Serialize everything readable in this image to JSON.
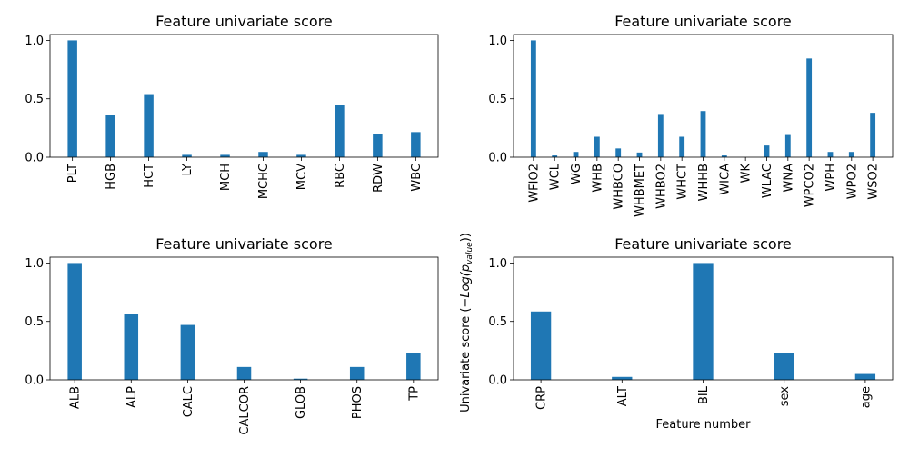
{
  "figure": {
    "shared_ylabel_prefix": "Univariate score (",
    "shared_ylabel_math": "−Log(p",
    "shared_ylabel_sub": "value",
    "shared_ylabel_suffix": "))"
  },
  "chart_data": [
    {
      "type": "bar",
      "title": "Feature univariate score",
      "xlabel": "",
      "ylabel": "",
      "categories": [
        "PLT",
        "HGB",
        "HCT",
        "LY",
        "MCH",
        "MCHC",
        "MCV",
        "RBC",
        "RDW",
        "WBC"
      ],
      "values": [
        1.0,
        0.36,
        0.54,
        0.02,
        0.02,
        0.045,
        0.02,
        0.45,
        0.2,
        0.215
      ],
      "ylim": [
        0,
        1.05
      ],
      "yticks": [
        0.0,
        0.5,
        1.0
      ],
      "ytick_labels": [
        "0.0",
        "0.5",
        "1.0"
      ],
      "bar_color": "#1f77b4",
      "grid": false
    },
    {
      "type": "bar",
      "title": "Feature univariate score",
      "xlabel": "",
      "ylabel": "",
      "categories": [
        "WFIO2",
        "WCL",
        "WG",
        "WHB",
        "WHBCO",
        "WHBMET",
        "WHBO2",
        "WHCT",
        "WHHB",
        "WICA",
        "WK",
        "WLAC",
        "WNA",
        "WPCO2",
        "WPH",
        "WPO2",
        "WSO2"
      ],
      "values": [
        1.0,
        0.015,
        0.045,
        0.175,
        0.075,
        0.04,
        0.37,
        0.175,
        0.395,
        0.015,
        0.0,
        0.1,
        0.19,
        0.845,
        0.045,
        0.045,
        0.38
      ],
      "ylim": [
        0,
        1.05
      ],
      "yticks": [
        0.0,
        0.5,
        1.0
      ],
      "ytick_labels": [
        "0.0",
        "0.5",
        "1.0"
      ],
      "bar_color": "#1f77b4",
      "grid": false
    },
    {
      "type": "bar",
      "title": "Feature univariate score",
      "xlabel": "",
      "ylabel": "",
      "categories": [
        "ALB",
        "ALP",
        "CALC",
        "CALCOR",
        "GLOB",
        "PHOS",
        "TP"
      ],
      "values": [
        1.0,
        0.56,
        0.47,
        0.11,
        0.01,
        0.11,
        0.23
      ],
      "ylim": [
        0,
        1.05
      ],
      "yticks": [
        0.0,
        0.5,
        1.0
      ],
      "ytick_labels": [
        "0.0",
        "0.5",
        "1.0"
      ],
      "bar_color": "#1f77b4",
      "grid": false
    },
    {
      "type": "bar",
      "title": "Feature univariate score",
      "xlabel": "Feature number",
      "ylabel": "",
      "categories": [
        "CRP",
        "ALT",
        "BIL",
        "sex",
        "age"
      ],
      "values": [
        0.585,
        0.025,
        1.0,
        0.23,
        0.05
      ],
      "ylim": [
        0,
        1.05
      ],
      "yticks": [
        0.0,
        0.5,
        1.0
      ],
      "ytick_labels": [
        "0.0",
        "0.5",
        "1.0"
      ],
      "bar_color": "#1f77b4",
      "grid": false
    }
  ]
}
